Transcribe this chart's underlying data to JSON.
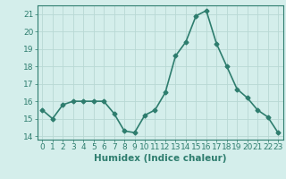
{
  "x": [
    0,
    1,
    2,
    3,
    4,
    5,
    6,
    7,
    8,
    9,
    10,
    11,
    12,
    13,
    14,
    15,
    16,
    17,
    18,
    19,
    20,
    21,
    22,
    23
  ],
  "y": [
    15.5,
    15.0,
    15.8,
    16.0,
    16.0,
    16.0,
    16.0,
    15.3,
    14.3,
    14.2,
    15.2,
    15.5,
    16.5,
    18.6,
    19.4,
    20.9,
    21.2,
    19.3,
    18.0,
    16.7,
    16.2,
    15.5,
    15.1,
    14.2
  ],
  "line_color": "#2e7d6e",
  "marker": "D",
  "marker_size": 2.5,
  "background_color": "#d4eeeb",
  "grid_color": "#b8d8d4",
  "xlabel": "Humidex (Indice chaleur)",
  "ylabel": "",
  "xlim": [
    -0.5,
    23.5
  ],
  "ylim": [
    13.8,
    21.5
  ],
  "yticks": [
    14,
    15,
    16,
    17,
    18,
    19,
    20,
    21
  ],
  "xticks": [
    0,
    1,
    2,
    3,
    4,
    5,
    6,
    7,
    8,
    9,
    10,
    11,
    12,
    13,
    14,
    15,
    16,
    17,
    18,
    19,
    20,
    21,
    22,
    23
  ],
  "tick_color": "#2e7d6e",
  "label_fontsize": 7.5,
  "tick_fontsize": 6.5,
  "axis_color": "#2e7d6e",
  "line_width": 1.2
}
